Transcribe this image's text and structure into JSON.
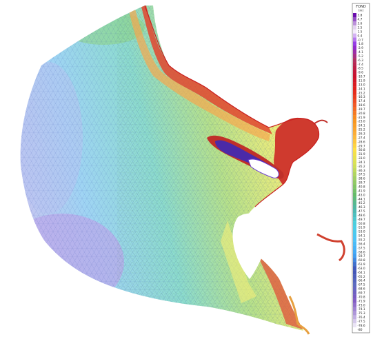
{
  "legend": {
    "title": "FOND",
    "unit": "(m)",
    "levels": [
      "3.8",
      "4.7",
      "3.6",
      "2.5",
      "1.5",
      "0.4",
      "-0.7",
      "-1.8",
      "-2.9",
      "-4.1",
      "-5.2",
      "-6.3",
      "-7.4",
      "-8.5",
      "-9.6",
      "-10.7",
      "-11.9",
      "-13.0",
      "-14.1",
      "-15.2",
      "-16.3",
      "-17.4",
      "-18.6",
      "-19.7",
      "-20.8",
      "-21.9",
      "-23.0",
      "-24.1",
      "-25.2",
      "-26.3",
      "-27.4",
      "-28.6",
      "-29.7",
      "-30.8",
      "-31.9",
      "-33.0",
      "-34.1",
      "-35.2",
      "-36.3",
      "-37.5",
      "-38.6",
      "-39.7",
      "-40.8",
      "-41.9",
      "-43.0",
      "-44.1",
      "-45.2",
      "-46.3",
      "-47.5",
      "-48.6",
      "-49.7",
      "-50.8",
      "-51.9",
      "-53.0",
      "-54.1",
      "-55.2",
      "-56.4",
      "-57.5",
      "-58.6",
      "-59.7",
      "-60.8",
      "-61.9",
      "-63.0",
      "-64.1",
      "-65.2",
      "-66.4",
      "-67.5",
      "-68.6",
      "-69.7",
      "-70.8",
      "-71.9",
      "-73.0",
      "-74.1",
      "-75.3",
      "-76.4",
      "-77.5",
      "-78.6",
      "-80"
    ],
    "colors": [
      "#6a0dad",
      "#ffffff",
      "#8a2be2",
      "#b03060",
      "#c8102e",
      "#e2231a",
      "#f05a28",
      "#f7931e",
      "#fbb03b",
      "#fde047",
      "#d4e157",
      "#9ccc65",
      "#66bb6a",
      "#4db6ac",
      "#4dd0e1",
      "#4fc3f7",
      "#42a5f5",
      "#3f51b5",
      "#5c6bc0",
      "#7e57c2",
      "#b39ddb",
      "#ffffff"
    ]
  },
  "map": {
    "colors": {
      "deep": "#b8a9e6",
      "mid_deep": "#8fd0f0",
      "mid": "#7fd6c8",
      "shallow_green": "#b9e48a",
      "shallow_yellow": "#f3ef7a",
      "coast_orange": "#f3a85a",
      "coast_red": "#e0503a",
      "land_dark_red": "#c0302a",
      "island_purple": "#4b2aa8",
      "mesh_line": "#2f4fae"
    }
  }
}
